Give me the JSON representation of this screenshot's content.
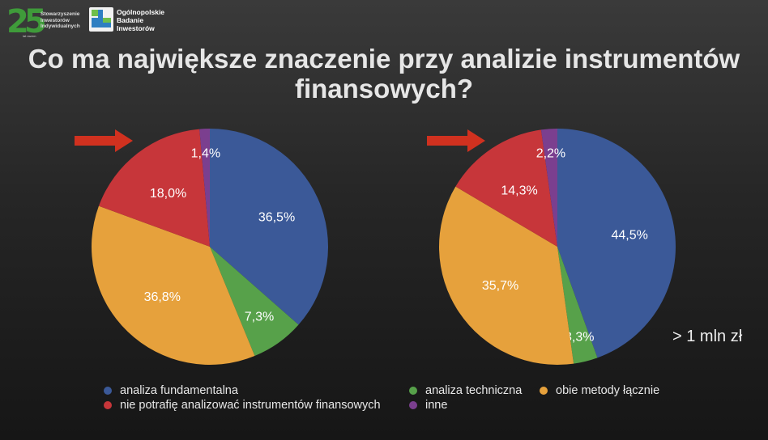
{
  "logos": {
    "left_number": "25",
    "left_sub": "lat razem",
    "left_text": "Stowarzyszenie Inwestorów Indywidualnych",
    "right_text": "Ogólnopolskie Badanie Inwestorów"
  },
  "title": "Co ma największe znaczenie przy analizie instrumentów finansowych?",
  "note": "> 1 mln zł",
  "colors": {
    "analiza fundamentalna": "#3b5998",
    "analiza techniczna": "#57a14a",
    "obie metody łącznie": "#e6a13c",
    "nie potrafię analizować instrumentów finansowych": "#c7363a",
    "inne": "#7b3f8f"
  },
  "legend": [
    {
      "label": "analiza fundamentalna",
      "color": "#3b5998"
    },
    {
      "label": "nie potrafię analizować instrumentów finansowych",
      "color": "#c7363a"
    },
    {
      "label": "analiza techniczna",
      "color": "#57a14a"
    },
    {
      "label": "obie metody łącznie",
      "color": "#e6a13c"
    },
    {
      "label": "inne",
      "color": "#7b3f8f"
    }
  ],
  "chart_data": [
    {
      "type": "pie",
      "slices": [
        {
          "label": "analiza fundamentalna",
          "value": 36.5,
          "text": "36,5%"
        },
        {
          "label": "analiza techniczna",
          "value": 7.3,
          "text": "7,3%"
        },
        {
          "label": "obie metody łącznie",
          "value": 36.8,
          "text": "36,8%"
        },
        {
          "label": "nie potrafię analizować instrumentów finansowych",
          "value": 18.0,
          "text": "18,0%"
        },
        {
          "label": "inne",
          "value": 1.4,
          "text": "1,4%"
        }
      ]
    },
    {
      "type": "pie",
      "slices": [
        {
          "label": "analiza fundamentalna",
          "value": 44.5,
          "text": "44,5%"
        },
        {
          "label": "analiza techniczna",
          "value": 3.3,
          "text": "3,3%"
        },
        {
          "label": "obie metody łącznie",
          "value": 35.7,
          "text": "35,7%"
        },
        {
          "label": "nie potrafię analizować instrumentów finansowych",
          "value": 14.3,
          "text": "14,3%"
        },
        {
          "label": "inne",
          "value": 2.2,
          "text": "2,2%"
        }
      ]
    }
  ]
}
